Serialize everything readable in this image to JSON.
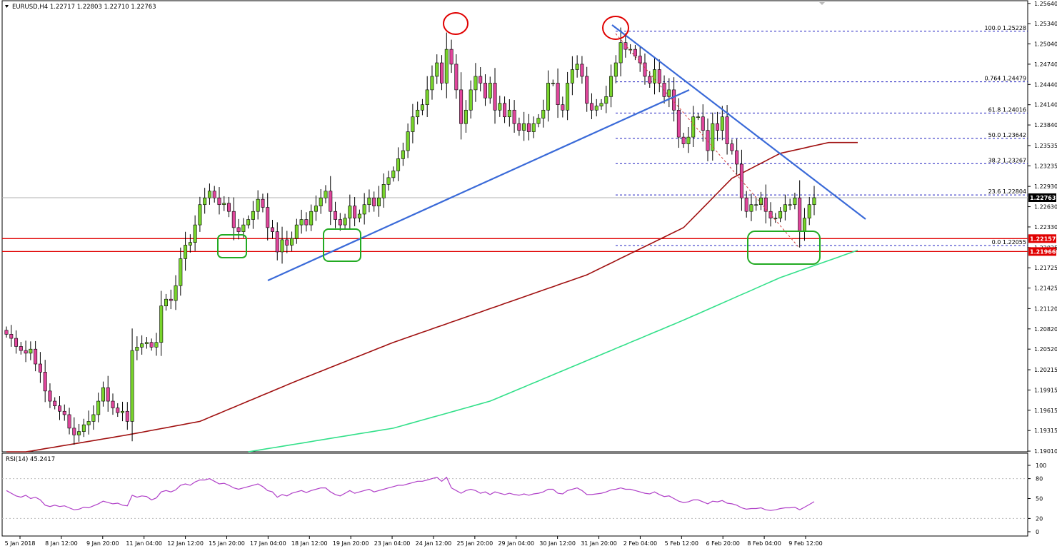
{
  "header": {
    "symbol_line": "EURUSD,H4  1.22717 1.22803 1.22710 1.22763",
    "rsi_label": "RSI(14) 45.2417"
  },
  "chart_data": [
    {
      "type": "candlestick",
      "symbol": "EURUSD",
      "timeframe": "H4",
      "last_bar": {
        "open": 1.22717,
        "high": 1.22803,
        "low": 1.2271,
        "close": 1.22763
      },
      "ylim": [
        1.19,
        1.2568
      ],
      "y_ticks": [
        "1.25640",
        "1.25340",
        "1.25040",
        "1.24740",
        "1.24440",
        "1.24140",
        "1.23840",
        "1.23535",
        "1.23235",
        "1.22930",
        "1.22630",
        "1.22330",
        "1.22025",
        "1.21725",
        "1.21425",
        "1.21120",
        "1.20820",
        "1.20520",
        "1.20215",
        "1.19915",
        "1.19615",
        "1.19315",
        "1.19010"
      ],
      "x_ticks": [
        "5 Jan 2018",
        "8 Jan 12:00",
        "9 Jan 20:00",
        "11 Jan 04:00",
        "12 Jan 12:00",
        "15 Jan 20:00",
        "17 Jan 04:00",
        "18 Jan 12:00",
        "19 Jan 20:00",
        "23 Jan 04:00",
        "24 Jan 12:00",
        "25 Jan 20:00",
        "29 Jan 04:00",
        "30 Jan 12:00",
        "31 Jan 20:00",
        "2 Feb 04:00",
        "5 Feb 12:00",
        "6 Feb 20:00",
        "8 Feb 04:00",
        "9 Feb 12:00"
      ],
      "price_tags": [
        {
          "text": "1.22763",
          "price": 1.22763,
          "color": "#000000"
        },
        {
          "text": "1.22157",
          "price": 1.22157,
          "color": "#e00000"
        },
        {
          "text": "1.21966",
          "price": 1.21966,
          "color": "#e00000"
        }
      ],
      "fibonacci": [
        {
          "label": "100.0 1.25228",
          "price": 1.25228
        },
        {
          "label": "0.764 1.24479",
          "price": 1.24479
        },
        {
          "label": "61.8 1.24016",
          "price": 1.24016
        },
        {
          "label": "50.0 1.23642",
          "price": 1.23642
        },
        {
          "label": "38.2 1.23267",
          "price": 1.23267
        },
        {
          "label": "23.6 1.22804",
          "price": 1.22804
        },
        {
          "label": "0.0 1.22055",
          "price": 1.22055
        }
      ],
      "support_lines": [
        1.22157,
        1.21966
      ],
      "colors": {
        "bull_candle": "#78d42c",
        "bear_candle": "#e0469c",
        "ma_slow": "#a01010",
        "ma_long": "#33e08a",
        "trendline": "#3a6ad8",
        "support": "#e00000",
        "highlight_box": "#22aa22",
        "peak_circle": "#e00000",
        "fib": "#2020c0",
        "rsi": "#b040c8"
      },
      "closes": [
        1.2074,
        1.2068,
        1.2056,
        1.205,
        1.2046,
        1.2052,
        1.203,
        1.2018,
        1.199,
        1.1975,
        1.1968,
        1.196,
        1.1955,
        1.1935,
        1.1925,
        1.193,
        1.194,
        1.1945,
        1.1955,
        1.1975,
        1.1995,
        1.1975,
        1.1965,
        1.1958,
        1.196,
        1.1945,
        1.205,
        1.2055,
        1.206,
        1.2062,
        1.2055,
        1.2062,
        1.2116,
        1.2126,
        1.2124,
        1.2146,
        1.2186,
        1.2206,
        1.221,
        1.2236,
        1.2266,
        1.2276,
        1.2286,
        1.2276,
        1.2266,
        1.2268,
        1.2256,
        1.2232,
        1.2226,
        1.2236,
        1.2244,
        1.2256,
        1.2274,
        1.2262,
        1.2232,
        1.2226,
        1.2196,
        1.2214,
        1.2206,
        1.2216,
        1.2236,
        1.2244,
        1.2236,
        1.2256,
        1.2264,
        1.2276,
        1.2286,
        1.2256,
        1.2244,
        1.2236,
        1.2246,
        1.2264,
        1.2246,
        1.2252,
        1.2266,
        1.2276,
        1.2264,
        1.2276,
        1.2296,
        1.2306,
        1.2316,
        1.2334,
        1.2346,
        1.2374,
        1.2396,
        1.2406,
        1.2414,
        1.2436,
        1.2456,
        1.2476,
        1.2446,
        1.2496,
        1.2474,
        1.2436,
        1.2386,
        1.2406,
        1.2436,
        1.2456,
        1.2446,
        1.2424,
        1.2446,
        1.2406,
        1.2416,
        1.2396,
        1.2406,
        1.2386,
        1.2376,
        1.2386,
        1.2374,
        1.2386,
        1.2394,
        1.2406,
        1.2446,
        1.2446,
        1.2414,
        1.2406,
        1.2446,
        1.2466,
        1.2474,
        1.2456,
        1.2416,
        1.2406,
        1.2412,
        1.2416,
        1.2426,
        1.2456,
        1.2476,
        1.2506,
        1.2496,
        1.2496,
        1.2486,
        1.2476,
        1.2456,
        1.2446,
        1.2466,
        1.2446,
        1.2426,
        1.2436,
        1.2406,
        1.2366,
        1.2356,
        1.2366,
        1.2396,
        1.2396,
        1.2376,
        1.2346,
        1.2386,
        1.2376,
        1.2396,
        1.2356,
        1.2346,
        1.2326,
        1.2276,
        1.2256,
        1.2266,
        1.2266,
        1.2276,
        1.2256,
        1.2246,
        1.2246,
        1.2256,
        1.2266,
        1.2266,
        1.2276,
        1.2226,
        1.2246,
        1.2266,
        1.22763
      ],
      "ma_slow_anchors": [
        [
          0,
          1.1895
        ],
        [
          25,
          1.1925
        ],
        [
          40,
          1.1945
        ],
        [
          60,
          1.2005
        ],
        [
          80,
          1.2062
        ],
        [
          100,
          1.2112
        ],
        [
          120,
          1.2162
        ],
        [
          140,
          1.2232
        ],
        [
          150,
          1.2305
        ],
        [
          160,
          1.2342
        ],
        [
          170,
          1.2358
        ],
        [
          176,
          1.2358
        ]
      ],
      "ma_long_anchors": [
        [
          50,
          1.19
        ],
        [
          80,
          1.1935
        ],
        [
          100,
          1.1975
        ],
        [
          120,
          1.2035
        ],
        [
          140,
          1.2095
        ],
        [
          160,
          1.2158
        ],
        [
          176,
          1.21985
        ]
      ],
      "rsi": {
        "ylim": [
          0,
          100
        ],
        "ticks": [
          "100",
          "80",
          "50",
          "20",
          "0"
        ],
        "levels": [
          80,
          20
        ],
        "values": [
          62,
          58,
          54,
          52,
          55,
          50,
          52,
          48,
          40,
          38,
          40,
          38,
          39,
          36,
          33,
          34,
          37,
          36,
          39,
          42,
          46,
          44,
          42,
          43,
          40,
          39,
          55,
          52,
          54,
          53,
          48,
          51,
          60,
          62,
          60,
          63,
          70,
          72,
          70,
          75,
          78,
          78,
          80,
          76,
          72,
          73,
          70,
          66,
          64,
          66,
          68,
          70,
          72,
          68,
          62,
          60,
          52,
          56,
          54,
          58,
          60,
          62,
          59,
          62,
          64,
          66,
          66,
          60,
          56,
          54,
          58,
          62,
          58,
          60,
          62,
          64,
          60,
          62,
          64,
          66,
          68,
          70,
          70,
          72,
          74,
          76,
          76,
          78,
          80,
          82,
          76,
          82,
          66,
          62,
          58,
          62,
          64,
          62,
          58,
          60,
          56,
          60,
          58,
          56,
          58,
          56,
          55,
          57,
          55,
          57,
          58,
          60,
          64,
          64,
          58,
          57,
          62,
          64,
          66,
          62,
          56,
          56,
          57,
          58,
          60,
          63,
          64,
          66,
          64,
          64,
          62,
          60,
          58,
          57,
          60,
          56,
          53,
          54,
          50,
          46,
          44,
          45,
          48,
          48,
          45,
          42,
          46,
          45,
          47,
          43,
          42,
          40,
          36,
          34,
          35,
          35,
          36,
          33,
          32,
          33,
          35,
          36,
          36,
          37,
          33,
          37,
          41,
          45.2417
        ]
      }
    }
  ]
}
